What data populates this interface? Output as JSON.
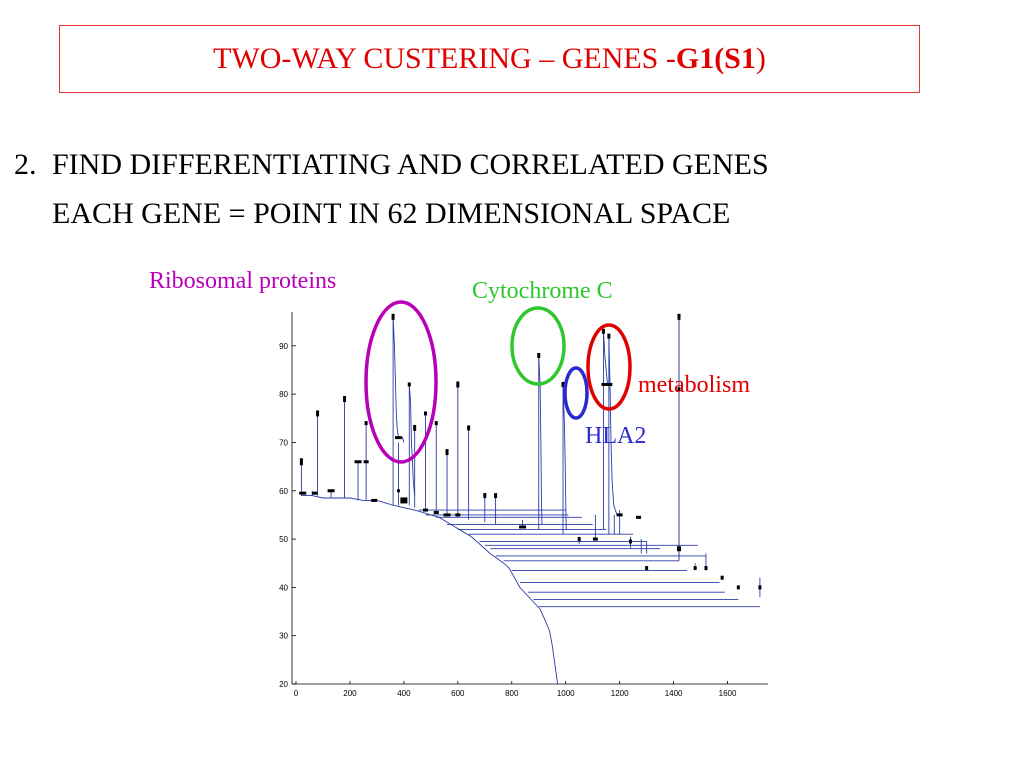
{
  "title": {
    "prefix": "TWO-WAY CUSTERING – GENES - ",
    "bold": "G1(S1",
    "suffix": ")"
  },
  "heading": {
    "number": "2.",
    "line1": "FIND DIFFERENTIATING AND CORRELATED GENES",
    "line2": "EACH GENE = POINT IN  62 DIMENSIONAL SPACE"
  },
  "annotations": {
    "ribosomal": "Ribosomal proteins",
    "cytochrome": "Cytochrome C",
    "metabolism": "metabolism",
    "hla2": "HLA2"
  },
  "colors": {
    "title": "#e00000",
    "ribosomal": "#b800b8",
    "cytochrome": "#2ec82e",
    "metabolism": "#e00000",
    "hla2": "#2a2ad0",
    "tree": "#2a3aa8"
  },
  "chart_data": {
    "type": "dendrogram",
    "x_ticks": [
      "0",
      "200",
      "400",
      "600",
      "800",
      "1000",
      "1200",
      "1400",
      "1600"
    ],
    "y_ticks": [
      "20",
      "30",
      "40",
      "50",
      "60",
      "70",
      "80",
      "90"
    ],
    "xlim": [
      0,
      1750
    ],
    "ylim": [
      20,
      97
    ]
  }
}
